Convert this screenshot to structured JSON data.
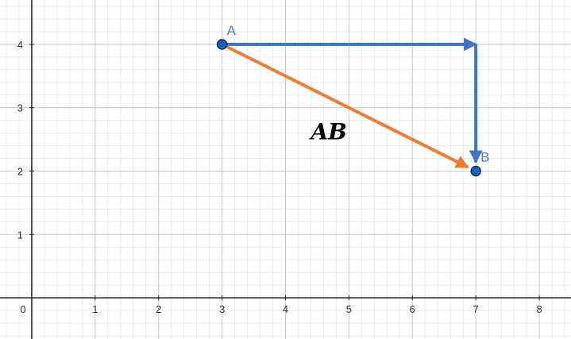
{
  "graph": {
    "x_range": [
      -0.5,
      8.5
    ],
    "y_range": [
      -0.65,
      4.7
    ],
    "x_ticks": [
      0,
      1,
      2,
      3,
      4,
      5,
      6,
      7,
      8
    ],
    "y_ticks": [
      1,
      2,
      3,
      4
    ],
    "origin_label": "0",
    "minor_grid_step": 0.2,
    "grid": true
  },
  "points": [
    {
      "id": "A",
      "label": "A",
      "x": 3,
      "y": 4,
      "color": "#1565c0",
      "label_color": "#4a7bd0"
    },
    {
      "id": "B",
      "label": "B",
      "x": 7,
      "y": 2,
      "color": "#1565c0",
      "label_color": "#4a7bd0"
    }
  ],
  "vectors": [
    {
      "name": "horizontal-component",
      "from": [
        3,
        4
      ],
      "to": [
        7,
        4
      ],
      "color": "#4472c4"
    },
    {
      "name": "vertical-component",
      "from": [
        7,
        4
      ],
      "to": [
        7,
        2
      ],
      "color": "#4472c4"
    },
    {
      "name": "vector-ab",
      "from": [
        3,
        4
      ],
      "to": [
        7,
        2
      ],
      "color": "#ed7d31"
    }
  ],
  "vector_label": {
    "text": "AB",
    "x": 4.4,
    "y": 2.5
  },
  "colors": {
    "axis": "#222222",
    "major_grid": "#c8c8c8",
    "minor_grid": "#ececec",
    "background": "#ffffff"
  }
}
